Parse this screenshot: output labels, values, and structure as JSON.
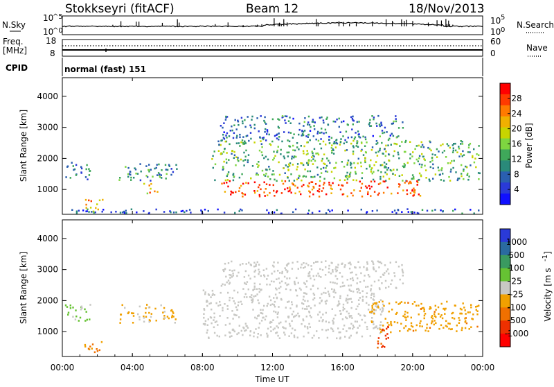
{
  "header": {
    "station": "Stokkseyri (fitACF)",
    "beam": "Beam 12",
    "date": "18/Nov/2013"
  },
  "nsky_panel": {
    "left_label": "N.Sky",
    "right_label": "N.Search",
    "left_ticks": [
      {
        "base": "10",
        "exp": "^5"
      },
      {
        "base": "10",
        "exp": "^0"
      }
    ],
    "right_ticks": [
      {
        "base": "10",
        "exp": "5"
      },
      {
        "base": "10",
        "exp": "0"
      }
    ]
  },
  "freq_panel": {
    "label_line1": "Freq.",
    "label_line2": "[MHz]",
    "left_ticks": [
      "18",
      "8"
    ],
    "right_ticks": [
      "60",
      "0"
    ],
    "right_label": "Nave"
  },
  "cpid_panel": {
    "label": "CPID",
    "mode_text": "normal (fast) 151"
  },
  "power_panel": {
    "ylabel": "Slant Range [km]",
    "yticks": [
      "4000",
      "3000",
      "2000",
      "1000"
    ],
    "colorbar_label": "Power [dB]",
    "colorbar_ticks": [
      "28",
      "24",
      "20",
      "16",
      "12",
      "8",
      "4"
    ],
    "colorbar_colors": [
      "#ff0000",
      "#ff3a00",
      "#ff7a00",
      "#f0b000",
      "#c8d400",
      "#7ed640",
      "#3fa85a",
      "#2a8a7a",
      "#2a5fb0",
      "#2a3ad8",
      "#1010ff"
    ]
  },
  "velocity_panel": {
    "ylabel": "Slant Range [km]",
    "yticks": [
      "4000",
      "3000",
      "2000",
      "1000"
    ],
    "colorbar_label": "Velocity [m s",
    "colorbar_label_exp": "-1",
    "colorbar_ticks": [
      "1000",
      "500",
      "100",
      "25",
      "-25",
      "-100",
      "-500",
      "-1000"
    ],
    "colorbar_colors": [
      "#2a3ad8",
      "#2a6aa0",
      "#3a9a60",
      "#66c233",
      "#c8c8c4",
      "#f0a000",
      "#f07000",
      "#ee3000",
      "#ff0000"
    ]
  },
  "xaxis": {
    "label": "Time UT",
    "ticks": [
      "00:00",
      "04:00",
      "08:00",
      "12:00",
      "16:00",
      "20:00",
      "00:00"
    ]
  },
  "chart_data": [
    {
      "type": "heatmap",
      "title": "Stokkseyri (fitACF) Beam 12 18/Nov/2013",
      "xlabel": "Time UT",
      "ylabel": "Slant Range [km]",
      "xlim": [
        0,
        24
      ],
      "ylim": [
        200,
        4600
      ],
      "value_label": "Power [dB]",
      "value_range": [
        0,
        30
      ],
      "regions": [
        {
          "t0": 0.1,
          "t1": 1.6,
          "r0": 1350,
          "r1": 1900,
          "value": 8
        },
        {
          "t0": 1.2,
          "t1": 2.3,
          "r0": 300,
          "r1": 700,
          "value": 20
        },
        {
          "t0": 3.2,
          "t1": 6.5,
          "r0": 1300,
          "r1": 1900,
          "value": 10
        },
        {
          "t0": 4.6,
          "t1": 5.4,
          "r0": 900,
          "r1": 1250,
          "value": 20
        },
        {
          "t0": 8.5,
          "t1": 23.8,
          "r0": 1300,
          "r1": 2600,
          "value": 13
        },
        {
          "t0": 9.0,
          "t1": 20.5,
          "r0": 800,
          "r1": 1300,
          "value": 26
        },
        {
          "t0": 9.0,
          "t1": 19.5,
          "r0": 2600,
          "r1": 3400,
          "value": 8
        },
        {
          "t0": 0.0,
          "t1": 24.0,
          "r0": 250,
          "r1": 400,
          "value": 6
        }
      ]
    },
    {
      "type": "heatmap",
      "title": "Stokkseyri (fitACF) Beam 12 18/Nov/2013",
      "xlabel": "Time UT",
      "ylabel": "Slant Range [km]",
      "xlim": [
        0,
        24
      ],
      "ylim": [
        200,
        4600
      ],
      "value_label": "Velocity [m s-1]",
      "value_range": [
        -1000,
        1000
      ],
      "regions": [
        {
          "t0": 0.1,
          "t1": 1.6,
          "r0": 1350,
          "r1": 1900,
          "value": 120
        },
        {
          "t0": 1.2,
          "t1": 2.3,
          "r0": 300,
          "r1": 700,
          "value": -300
        },
        {
          "t0": 3.2,
          "t1": 6.5,
          "r0": 1300,
          "r1": 1900,
          "value": -150
        },
        {
          "t0": 8.0,
          "t1": 18.3,
          "r0": 800,
          "r1": 2400,
          "value": 0
        },
        {
          "t0": 9.0,
          "t1": 19.5,
          "r0": 2400,
          "r1": 3300,
          "value": 0
        },
        {
          "t0": 17.5,
          "t1": 23.8,
          "r0": 1000,
          "r1": 2000,
          "value": -250
        },
        {
          "t0": 17.8,
          "t1": 18.6,
          "r0": 500,
          "r1": 1300,
          "value": -600
        }
      ]
    }
  ]
}
